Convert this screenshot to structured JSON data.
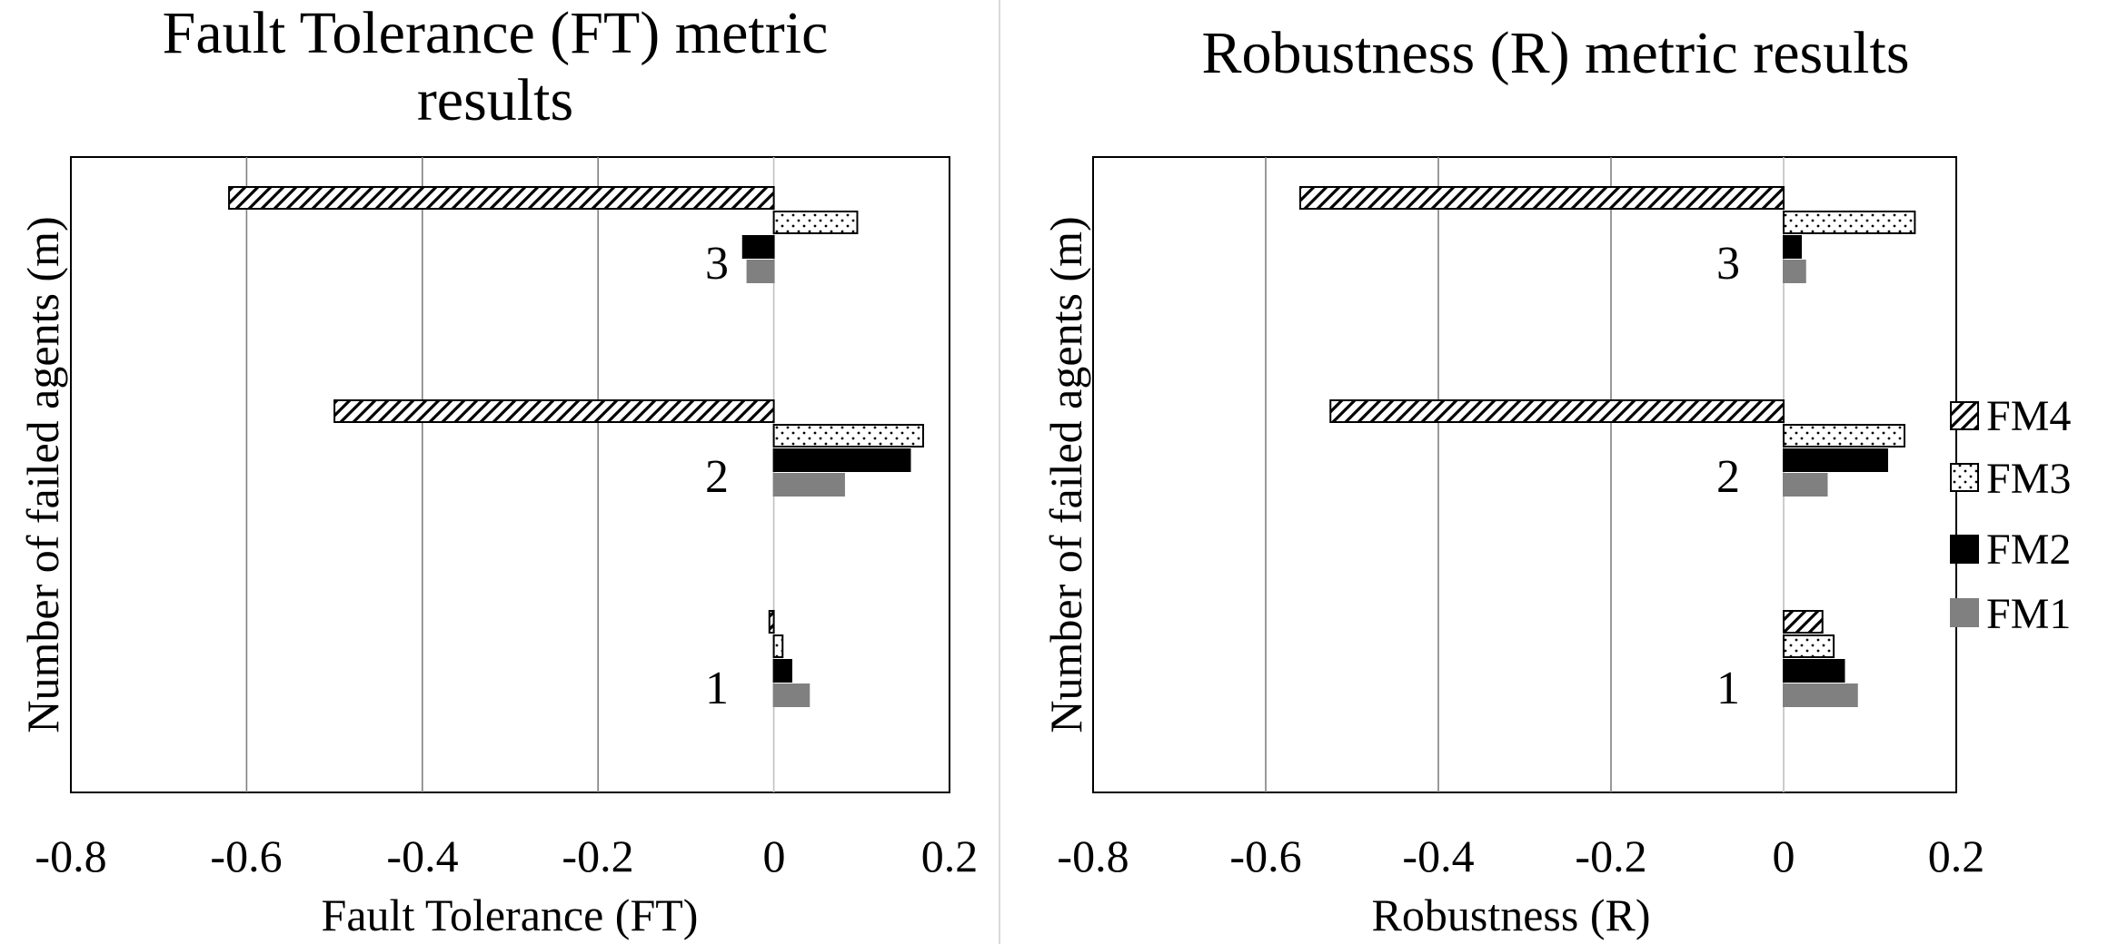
{
  "colors": {
    "background": "#ffffff",
    "frame": "#000000",
    "gridline": "#808080",
    "FM1": "#808080",
    "FM2": "#000000",
    "FM3": "#ffffff",
    "FM4": "#ffffff",
    "divider": "#d9d9d9"
  },
  "legend": {
    "entries": [
      {
        "name": "FM4",
        "pattern": "diagonal-hatch"
      },
      {
        "name": "FM3",
        "pattern": "dots"
      },
      {
        "name": "FM2",
        "pattern": "solid-black"
      },
      {
        "name": "FM1",
        "pattern": "solid-gray"
      }
    ]
  },
  "chart_data": [
    {
      "type": "bar",
      "orientation": "horizontal",
      "title_lines": [
        "Fault Tolerance (FT) metric",
        "results"
      ],
      "xlabel": "Fault Tolerance (FT)",
      "ylabel": "Number of failed agents (m)",
      "xlim": [
        -0.8,
        0.2
      ],
      "xticks": [
        -0.8,
        -0.6,
        -0.4,
        -0.2,
        0,
        0.2
      ],
      "xtick_labels": [
        "-0.8",
        "-0.6",
        "-0.4",
        "-0.2",
        "0",
        "0.2"
      ],
      "gridlines": [
        -0.6,
        -0.4,
        -0.2
      ],
      "categories": [
        "1",
        "2",
        "3"
      ],
      "series": [
        {
          "name": "FM1",
          "values": [
            0.04,
            0.08,
            -0.03
          ]
        },
        {
          "name": "FM2",
          "values": [
            0.02,
            0.155,
            -0.035
          ]
        },
        {
          "name": "FM3",
          "values": [
            0.01,
            0.17,
            0.095
          ]
        },
        {
          "name": "FM4",
          "values": [
            -0.005,
            -0.5,
            -0.62
          ]
        }
      ]
    },
    {
      "type": "bar",
      "orientation": "horizontal",
      "title_lines": [
        "Robustness (R) metric results"
      ],
      "xlabel": "Robustness (R)",
      "ylabel": "Number of failed agents (m)",
      "xlim": [
        -0.8,
        0.2
      ],
      "xticks": [
        -0.8,
        -0.6,
        -0.4,
        -0.2,
        0,
        0.2
      ],
      "xtick_labels": [
        "-0.8",
        "-0.6",
        "-0.4",
        "-0.2",
        "0",
        "0.2"
      ],
      "gridlines": [
        -0.6,
        -0.4,
        -0.2
      ],
      "categories": [
        "1",
        "2",
        "3"
      ],
      "series": [
        {
          "name": "FM1",
          "values": [
            0.085,
            0.05,
            0.025
          ]
        },
        {
          "name": "FM2",
          "values": [
            0.07,
            0.12,
            0.02
          ]
        },
        {
          "name": "FM3",
          "values": [
            0.058,
            0.14,
            0.152
          ]
        },
        {
          "name": "FM4",
          "values": [
            0.045,
            -0.525,
            -0.56
          ]
        }
      ]
    }
  ]
}
